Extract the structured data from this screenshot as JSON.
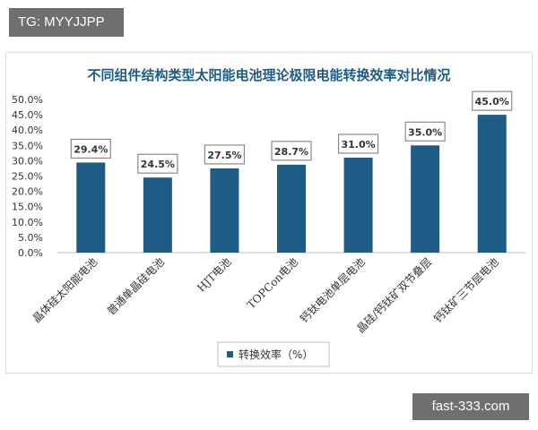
{
  "watermarks": {
    "top_left": "TG: MYYJJPP",
    "bottom_right": "fast-333.com"
  },
  "chart_data": {
    "type": "bar",
    "title": "不同组件结构类型太阳能电池理论极限电能转换效率对比情况",
    "categories": [
      "晶体硅太阳能电池",
      "普通单晶硅电池",
      "HJT电池",
      "TOPCon电池",
      "钙钛电池单层电池",
      "晶硅/钙钛矿双节叠层",
      "钙钛矿三节层电池"
    ],
    "series": [
      {
        "name": "转换效率（%）",
        "values": [
          29.4,
          24.5,
          27.5,
          28.7,
          31.0,
          35.0,
          45.0
        ],
        "labels": [
          "29.4%",
          "24.5%",
          "27.5%",
          "28.7%",
          "31.0%",
          "35.0%",
          "45.0%"
        ]
      }
    ],
    "ylim": [
      0,
      50
    ],
    "yticks": [
      "0.0%",
      "5.0%",
      "10.0%",
      "15.0%",
      "20.0%",
      "25.0%",
      "30.0%",
      "35.0%",
      "40.0%",
      "45.0%",
      "50.0%"
    ],
    "xlabel": "",
    "ylabel": "",
    "grid": false,
    "legend_position": "bottom",
    "colors": {
      "bar": "#1c5c85",
      "title": "#1c5c85",
      "label_border": "#8a8a8a"
    }
  }
}
